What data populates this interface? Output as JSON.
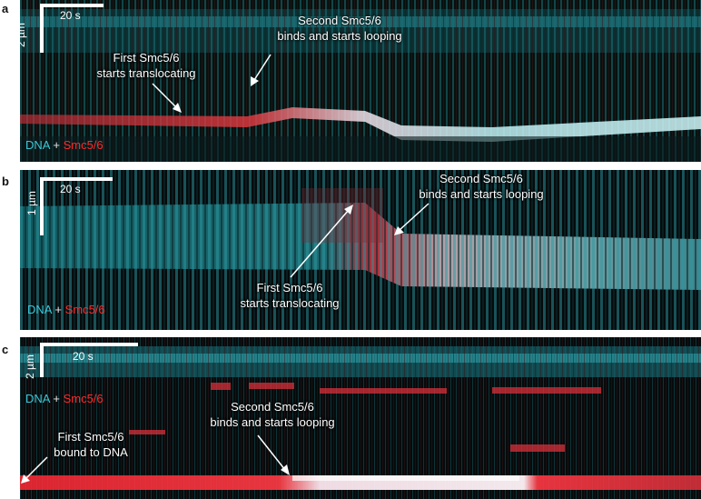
{
  "panels": [
    {
      "label": "a",
      "scale_time": "20 s",
      "scale_length": "2 µm",
      "legend": {
        "dna": "DNA",
        "plus": "+",
        "smc": "Smc5/6"
      },
      "annotations": [
        {
          "line1": "Second Smc5/6",
          "line2": "binds and starts looping"
        },
        {
          "line1": "First Smc5/6",
          "line2": "starts translocating"
        }
      ]
    },
    {
      "label": "b",
      "scale_time": "20 s",
      "scale_length": "1 µm",
      "legend": {
        "dna": "DNA",
        "plus": "+",
        "smc": "Smc5/6"
      },
      "annotations": [
        {
          "line1": "Second Smc5/6",
          "line2": "binds and starts looping"
        },
        {
          "line1": "First Smc5/6",
          "line2": "starts translocating"
        }
      ]
    },
    {
      "label": "c",
      "scale_time": "20 s",
      "scale_length": "2 µm",
      "legend": {
        "dna": "DNA",
        "plus": "+",
        "smc": "Smc5/6"
      },
      "annotations": [
        {
          "line1": "Second Smc5/6",
          "line2": "binds and starts looping"
        },
        {
          "line1": "First Smc5/6",
          "line2": "bound to DNA"
        }
      ]
    }
  ],
  "colors": {
    "dna": "#3cc6d6",
    "smc": "#ff2a2a"
  }
}
